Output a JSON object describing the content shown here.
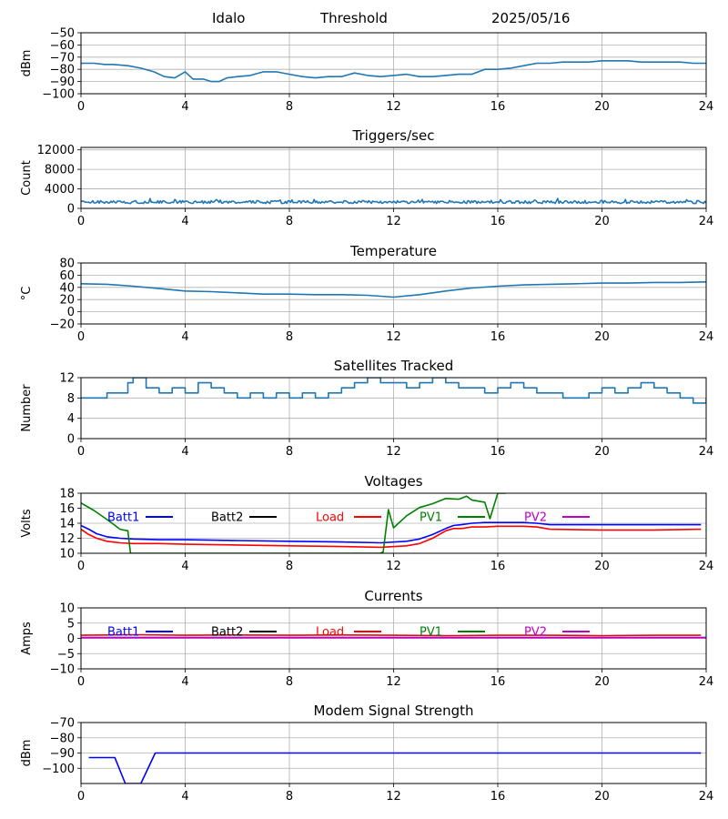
{
  "header": {
    "station": "Idalo",
    "mode": "Threshold",
    "date": "2025/05/16"
  },
  "chart_data": [
    {
      "type": "line",
      "title": "",
      "ylabel": "dBm",
      "xlim": [
        0,
        24
      ],
      "ylim": [
        -100,
        -50
      ],
      "x_ticks": [
        "0",
        "4",
        "8",
        "12",
        "16",
        "20",
        "24"
      ],
      "y_ticks": [
        "-100",
        "-90",
        "-80",
        "-70",
        "-60",
        "-50"
      ],
      "grid": true,
      "series": [
        {
          "color": "#1f77b4",
          "x": [
            0,
            0.5,
            0.9,
            1.2,
            1.8,
            2.3,
            2.8,
            3.2,
            3.6,
            4.0,
            4.3,
            4.7,
            5.0,
            5.3,
            5.6,
            6.0,
            6.5,
            7.0,
            7.5,
            8.0,
            8.5,
            9.0,
            9.5,
            10.0,
            10.5,
            11.0,
            11.5,
            12.0,
            12.5,
            13.0,
            13.5,
            14.0,
            14.5,
            15.0,
            15.5,
            16.0,
            16.5,
            17.0,
            17.5,
            18.0,
            18.5,
            19.0,
            19.5,
            20.0,
            20.5,
            21.0,
            21.5,
            22.0,
            22.5,
            23.0,
            23.5,
            24.0
          ],
          "y": [
            -75,
            -75,
            -76,
            -76,
            -77,
            -79,
            -82,
            -86,
            -87,
            -82,
            -88,
            -88,
            -90,
            -90,
            -87,
            -86,
            -85,
            -82,
            -82,
            -84,
            -86,
            -87,
            -86,
            -86,
            -83,
            -85,
            -86,
            -85,
            -84,
            -86,
            -86,
            -85,
            -84,
            -84,
            -80,
            -80,
            -79,
            -77,
            -75,
            -75,
            -74,
            -74,
            -74,
            -73,
            -73,
            -73,
            -74,
            -74,
            -74,
            -74,
            -75,
            -75
          ]
        }
      ]
    },
    {
      "type": "line",
      "title": "Triggers/sec",
      "ylabel": "Count",
      "xlim": [
        0,
        24
      ],
      "ylim": [
        0,
        12500
      ],
      "x_ticks": [
        "0",
        "4",
        "8",
        "12",
        "16",
        "20",
        "24"
      ],
      "y_ticks": [
        "0",
        "4000",
        "8000",
        "12000"
      ],
      "grid": true,
      "series": [
        {
          "color": "#1f77b4",
          "base": 1300,
          "noise": 600,
          "x": [
            0,
            24
          ],
          "y": [
            1300,
            1300
          ]
        }
      ]
    },
    {
      "type": "line",
      "title": "Temperature",
      "ylabel": "°C",
      "xlim": [
        0,
        24
      ],
      "ylim": [
        -20,
        80
      ],
      "x_ticks": [
        "0",
        "4",
        "8",
        "12",
        "16",
        "20",
        "24"
      ],
      "y_ticks": [
        "-20",
        "0",
        "20",
        "40",
        "60",
        "80"
      ],
      "grid": true,
      "series": [
        {
          "color": "#1f77b4",
          "x": [
            0,
            1,
            2,
            3,
            4,
            5,
            6,
            7,
            8,
            9,
            10,
            11,
            12,
            13,
            14,
            15,
            16,
            17,
            18,
            19,
            20,
            21,
            22,
            23,
            24
          ],
          "y": [
            46,
            45,
            42,
            38,
            34,
            33,
            31,
            29,
            29,
            28,
            28,
            27,
            24,
            28,
            34,
            39,
            42,
            44,
            45,
            46,
            47,
            47,
            48,
            48,
            49
          ]
        }
      ]
    },
    {
      "type": "line",
      "title": "Satellites Tracked",
      "ylabel": "Number",
      "xlim": [
        0,
        24
      ],
      "ylim": [
        0,
        12
      ],
      "x_ticks": [
        "0",
        "4",
        "8",
        "12",
        "16",
        "20",
        "24"
      ],
      "y_ticks": [
        "0",
        "4",
        "8",
        "12"
      ],
      "grid": true,
      "series": [
        {
          "color": "#1f77b4",
          "step": true,
          "x": [
            0,
            0.5,
            1.0,
            1.5,
            1.8,
            2.0,
            2.5,
            3.0,
            3.5,
            4.0,
            4.5,
            5.0,
            5.5,
            6.0,
            6.5,
            7.0,
            7.5,
            8.0,
            8.5,
            9.0,
            9.5,
            10.0,
            10.5,
            11.0,
            11.5,
            12.0,
            12.5,
            13.0,
            13.5,
            14.0,
            14.5,
            15.0,
            15.5,
            16.0,
            16.5,
            17.0,
            17.5,
            18.0,
            18.5,
            19.0,
            19.5,
            20.0,
            20.5,
            21.0,
            21.5,
            22.0,
            22.5,
            23.0,
            23.5,
            24.0
          ],
          "y": [
            8,
            8,
            9,
            9,
            11,
            12,
            10,
            9,
            10,
            9,
            11,
            10,
            9,
            8,
            9,
            8,
            9,
            8,
            9,
            8,
            9,
            10,
            11,
            12,
            11,
            11,
            10,
            11,
            12,
            11,
            10,
            10,
            9,
            10,
            11,
            10,
            9,
            9,
            8,
            8,
            9,
            10,
            9,
            10,
            11,
            10,
            9,
            8,
            7,
            8
          ]
        }
      ]
    },
    {
      "type": "line",
      "title": "Voltages",
      "ylabel": "Volts",
      "xlim": [
        0,
        24
      ],
      "ylim": [
        10,
        18
      ],
      "x_ticks": [
        "0",
        "4",
        "8",
        "12",
        "16",
        "20",
        "24"
      ],
      "y_ticks": [
        "10",
        "12",
        "14",
        "16",
        "18"
      ],
      "grid": true,
      "legend": [
        {
          "name": "Batt1",
          "color": "#0000ff"
        },
        {
          "name": "Batt2",
          "color": "#000000"
        },
        {
          "name": "Load",
          "color": "#ff0000"
        },
        {
          "name": "PV1",
          "color": "#008000"
        },
        {
          "name": "PV2",
          "color": "#bf00bf"
        }
      ],
      "series": [
        {
          "name": "Batt1",
          "color": "#0000ff",
          "x": [
            0,
            0.3,
            0.6,
            1.0,
            1.5,
            2.0,
            3.0,
            4.0,
            6.0,
            8.0,
            10.0,
            11.5,
            12.5,
            13.0,
            13.5,
            14.0,
            14.3,
            14.6,
            15.0,
            15.5,
            16.0,
            17.0,
            17.5,
            18.0,
            20.0,
            22.0,
            23.8
          ],
          "y": [
            13.7,
            13.2,
            12.6,
            12.2,
            12.0,
            11.9,
            11.8,
            11.8,
            11.7,
            11.6,
            11.5,
            11.4,
            11.6,
            11.9,
            12.5,
            13.3,
            13.7,
            13.8,
            14.0,
            14.1,
            14.1,
            14.1,
            14.0,
            13.8,
            13.8,
            13.8,
            13.8
          ]
        },
        {
          "name": "Load",
          "color": "#ff0000",
          "x": [
            0,
            0.3,
            0.6,
            1.0,
            1.5,
            2.0,
            3.0,
            4.0,
            6.0,
            8.0,
            10.0,
            11.5,
            12.5,
            13.0,
            13.5,
            14.0,
            14.3,
            14.6,
            15.0,
            15.5,
            16.0,
            17.0,
            17.5,
            18.0,
            20.0,
            22.0,
            23.8
          ],
          "y": [
            13.2,
            12.5,
            12.0,
            11.6,
            11.4,
            11.3,
            11.3,
            11.2,
            11.1,
            11.0,
            10.9,
            10.8,
            11.0,
            11.3,
            12.0,
            13.0,
            13.3,
            13.3,
            13.5,
            13.5,
            13.6,
            13.6,
            13.5,
            13.2,
            13.1,
            13.1,
            13.2
          ]
        },
        {
          "name": "PV1",
          "color": "#008000",
          "x": [
            0,
            0.5,
            1.0,
            1.5,
            1.8,
            1.9,
            11.5,
            11.6,
            11.8,
            12.0,
            12.5,
            13.0,
            13.5,
            14.0,
            14.5,
            14.8,
            15.0,
            15.5,
            15.7,
            16.0,
            16.3
          ],
          "y": [
            16.7,
            15.7,
            14.5,
            13.2,
            13.0,
            10.0,
            10.0,
            10.2,
            15.8,
            13.4,
            15.0,
            16.1,
            16.6,
            17.3,
            17.2,
            17.6,
            17.1,
            16.8,
            14.6,
            18.0,
            18.0
          ]
        }
      ]
    },
    {
      "type": "line",
      "title": "Currents",
      "ylabel": "Amps",
      "xlim": [
        0,
        24
      ],
      "ylim": [
        -10,
        10
      ],
      "x_ticks": [
        "0",
        "4",
        "8",
        "12",
        "16",
        "20",
        "24"
      ],
      "y_ticks": [
        "-10",
        "-5",
        "0",
        "5",
        "10"
      ],
      "grid": true,
      "legend": [
        {
          "name": "Batt1",
          "color": "#0000ff"
        },
        {
          "name": "Batt2",
          "color": "#000000"
        },
        {
          "name": "Load",
          "color": "#ff0000"
        },
        {
          "name": "PV1",
          "color": "#008000"
        },
        {
          "name": "PV2",
          "color": "#bf00bf"
        }
      ],
      "series": [
        {
          "name": "Load",
          "color": "#ff0000",
          "x": [
            0,
            2,
            4,
            6,
            8,
            10,
            12,
            14,
            16,
            18,
            20,
            22,
            23.8
          ],
          "y": [
            1.0,
            1.2,
            1.0,
            1.1,
            1.0,
            1.1,
            1.0,
            0.9,
            1.0,
            1.0,
            0.9,
            1.0,
            1.0
          ]
        },
        {
          "name": "Batt1",
          "color": "#0000ff",
          "x": [
            0,
            24
          ],
          "y": [
            0.3,
            0.3
          ]
        },
        {
          "name": "PV2",
          "color": "#bf00bf",
          "x": [
            0,
            24
          ],
          "y": [
            0.2,
            0.2
          ]
        }
      ]
    },
    {
      "type": "line",
      "title": "Modem Signal Strength",
      "ylabel": "dBm",
      "xlim": [
        0,
        24
      ],
      "ylim": [
        -110,
        -70
      ],
      "x_ticks": [
        "0",
        "4",
        "8",
        "12",
        "16",
        "20",
        "24"
      ],
      "y_ticks": [
        "-100",
        "-90",
        "-80",
        "-70"
      ],
      "grid": true,
      "series": [
        {
          "color": "#0000ff",
          "x": [
            0.3,
            1.3,
            1.7,
            2.3,
            2.85,
            23.8
          ],
          "y": [
            -93,
            -93,
            -110,
            -110,
            -90,
            -90
          ]
        }
      ]
    }
  ]
}
